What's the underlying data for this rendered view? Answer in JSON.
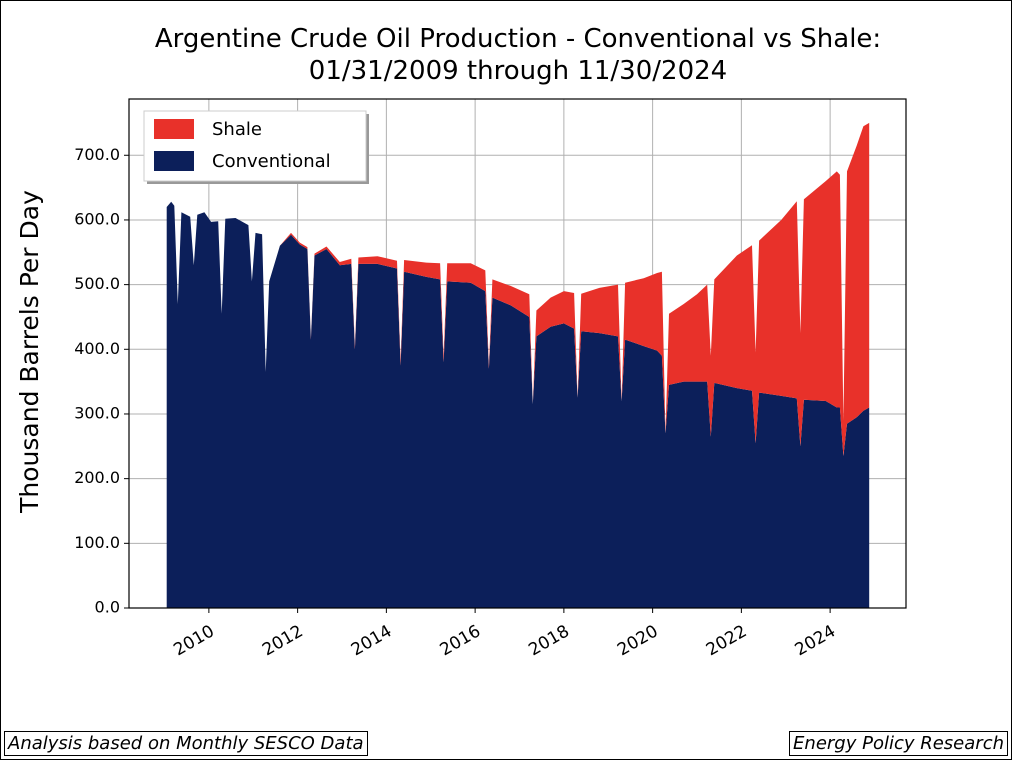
{
  "chart_data": {
    "type": "stacked-area",
    "title": "Argentine Crude Oil Production - Conventional vs Shale: 01/31/2009 through 11/30/2024",
    "y_label": "Thousand Barrels Per Day",
    "annotations": [
      "Analysis based on Monthly SESCO Data",
      "Energy Policy Research"
    ],
    "legend": "upper left",
    "grid": true,
    "xlim": [
      2008.2,
      2025.71
    ],
    "xticks": [
      2010,
      2012,
      2014,
      2016,
      2018,
      2020,
      2022,
      2024
    ],
    "ylim": [
      0,
      787
    ],
    "yticks": [
      {
        "value": 0,
        "label": "0.0"
      },
      {
        "value": 100,
        "label": "100.0"
      },
      {
        "value": 200,
        "label": "200.0"
      },
      {
        "value": 300,
        "label": "300.0"
      },
      {
        "value": 400,
        "label": "400.0"
      },
      {
        "value": 500,
        "label": "500.0"
      },
      {
        "value": 600,
        "label": "600.0"
      },
      {
        "value": 700,
        "label": "700.0"
      }
    ],
    "x": [
      2009.05,
      2009.15,
      2009.22,
      2009.3,
      2009.38,
      2009.58,
      2009.66,
      2009.74,
      2009.9,
      2010.05,
      2010.21,
      2010.29,
      2010.37,
      2010.6,
      2010.89,
      2010.97,
      2011.05,
      2011.2,
      2011.28,
      2011.36,
      2011.6,
      2011.85,
      2012.05,
      2012.22,
      2012.3,
      2012.38,
      2012.65,
      2012.95,
      2013.21,
      2013.29,
      2013.37,
      2013.8,
      2014.24,
      2014.32,
      2014.4,
      2014.9,
      2015.21,
      2015.29,
      2015.37,
      2015.9,
      2016.23,
      2016.31,
      2016.39,
      2016.8,
      2017.22,
      2017.3,
      2017.38,
      2017.7,
      2018.0,
      2018.23,
      2018.31,
      2018.39,
      2018.8,
      2019.22,
      2019.3,
      2019.38,
      2019.8,
      2020.1,
      2020.21,
      2020.29,
      2020.37,
      2020.7,
      2021.0,
      2021.23,
      2021.31,
      2021.39,
      2021.9,
      2022.24,
      2022.32,
      2022.4,
      2022.9,
      2023.25,
      2023.33,
      2023.41,
      2023.9,
      2024.15,
      2024.22,
      2024.3,
      2024.38,
      2024.6,
      2024.75,
      2024.88
    ],
    "series": [
      {
        "name": "Shale",
        "color": "#e8312a",
        "values": [
          0,
          0,
          0,
          0,
          0,
          0,
          0,
          0,
          0,
          0,
          0,
          0,
          0,
          0,
          0,
          0,
          0,
          0,
          0,
          0,
          0,
          3,
          3,
          3,
          2,
          3,
          4,
          5,
          8,
          5,
          10,
          12,
          12,
          8,
          18,
          22,
          25,
          10,
          28,
          30,
          32,
          5,
          28,
          30,
          35,
          0,
          40,
          45,
          50,
          55,
          0,
          58,
          70,
          80,
          0,
          88,
          105,
          120,
          130,
          0,
          110,
          120,
          135,
          150,
          125,
          160,
          205,
          225,
          140,
          235,
          272,
          305,
          175,
          310,
          340,
          365,
          360,
          55,
          390,
          420,
          440,
          440
        ]
      },
      {
        "name": "Conventional",
        "color": "#0c1f5a",
        "values": [
          620,
          628,
          622,
          470,
          612,
          605,
          530,
          608,
          612,
          597,
          598,
          455,
          602,
          603,
          592,
          505,
          580,
          578,
          365,
          505,
          560,
          577,
          562,
          555,
          415,
          545,
          555,
          530,
          532,
          400,
          532,
          532,
          525,
          375,
          520,
          512,
          508,
          380,
          505,
          503,
          490,
          370,
          480,
          468,
          450,
          315,
          420,
          435,
          440,
          432,
          325,
          428,
          425,
          420,
          320,
          415,
          405,
          398,
          390,
          270,
          345,
          350,
          350,
          350,
          265,
          348,
          340,
          336,
          255,
          333,
          328,
          324,
          250,
          322,
          320,
          310,
          310,
          235,
          285,
          295,
          305,
          310
        ]
      }
    ]
  }
}
